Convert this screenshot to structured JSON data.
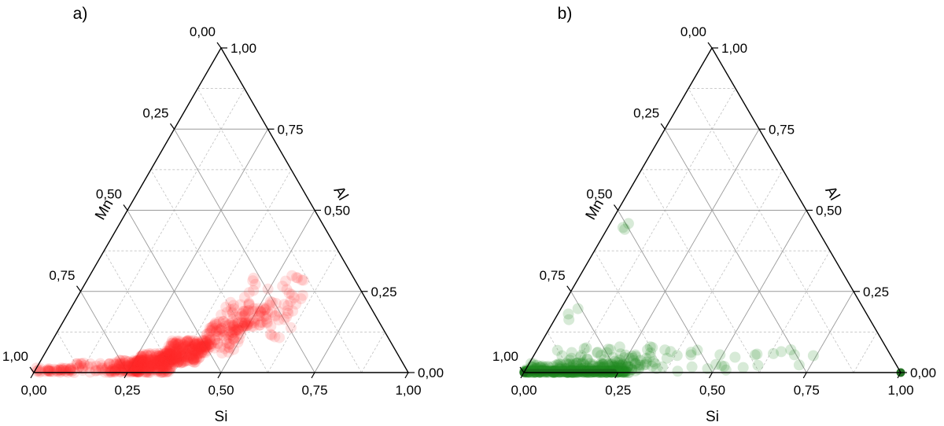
{
  "chart_data": [
    {
      "type": "scatter",
      "subtype": "ternary",
      "panel_label": "a)",
      "axes": {
        "bottom": "Si",
        "left": "Mn",
        "right": "Al"
      },
      "ticks": [
        "0,00",
        "0,25",
        "0,50",
        "0,75",
        "1,00"
      ],
      "tick_values": [
        0,
        0.25,
        0.5,
        0.75,
        1
      ],
      "marker_color": "#ff2a2a",
      "marker_opacity": 0.14,
      "clusters": [
        {
          "si": [
            0.0,
            0.1
          ],
          "al": [
            0.0,
            0.015
          ],
          "n": 45
        },
        {
          "si": [
            0.1,
            0.2
          ],
          "al": [
            0.0,
            0.03
          ],
          "n": 35
        },
        {
          "si": [
            0.2,
            0.28
          ],
          "al": [
            0.0,
            0.04
          ],
          "n": 120
        },
        {
          "si": [
            0.26,
            0.36
          ],
          "al": [
            0.0,
            0.06
          ],
          "n": 260
        },
        {
          "si": [
            0.32,
            0.42
          ],
          "al": [
            0.03,
            0.1
          ],
          "n": 200
        },
        {
          "si": [
            0.4,
            0.5
          ],
          "al": [
            0.06,
            0.16
          ],
          "n": 110
        },
        {
          "si": [
            0.45,
            0.55
          ],
          "al": [
            0.13,
            0.2
          ],
          "n": 45
        },
        {
          "si": [
            0.4,
            0.48
          ],
          "al": [
            0.12,
            0.22
          ],
          "n": 25
        },
        {
          "si": [
            0.52,
            0.6
          ],
          "al": [
            0.17,
            0.25
          ],
          "n": 18
        },
        {
          "si": [
            0.44,
            0.58
          ],
          "al": [
            0.22,
            0.3
          ],
          "n": 16
        },
        {
          "si": [
            0.55,
            0.62
          ],
          "al": [
            0.1,
            0.2
          ],
          "n": 10
        }
      ]
    },
    {
      "type": "scatter",
      "subtype": "ternary",
      "panel_label": "b)",
      "axes": {
        "bottom": "Si",
        "left": "Mn",
        "right": "Al"
      },
      "ticks": [
        "0,00",
        "0,25",
        "0,50",
        "0,75",
        "1,00"
      ],
      "tick_values": [
        0,
        0.25,
        0.5,
        0.75,
        1
      ],
      "marker_color": "#1f8a1f",
      "marker_opacity": 0.18,
      "clusters": [
        {
          "si": [
            0.0,
            0.27
          ],
          "al": [
            0.0,
            0.006
          ],
          "n": 320
        },
        {
          "si": [
            0.0,
            0.3
          ],
          "al": [
            0.0,
            0.03
          ],
          "n": 140
        },
        {
          "si": [
            0.05,
            0.32
          ],
          "al": [
            0.02,
            0.08
          ],
          "n": 55
        },
        {
          "si": [
            0.3,
            0.58
          ],
          "al": [
            0.0,
            0.07
          ],
          "n": 22
        },
        {
          "si": [
            0.58,
            0.82
          ],
          "al": [
            0.02,
            0.08
          ],
          "n": 9
        },
        {
          "si": [
            0.0,
            0.06
          ],
          "al": [
            0.1,
            0.2
          ],
          "n": 3
        },
        {
          "si": [
            0.0,
            0.05
          ],
          "al": [
            0.4,
            0.55
          ],
          "n": 3
        }
      ],
      "vertex_points": [
        {
          "si": 0.0,
          "al": 0.0
        },
        {
          "si": 1.0,
          "al": 0.0
        }
      ]
    }
  ]
}
